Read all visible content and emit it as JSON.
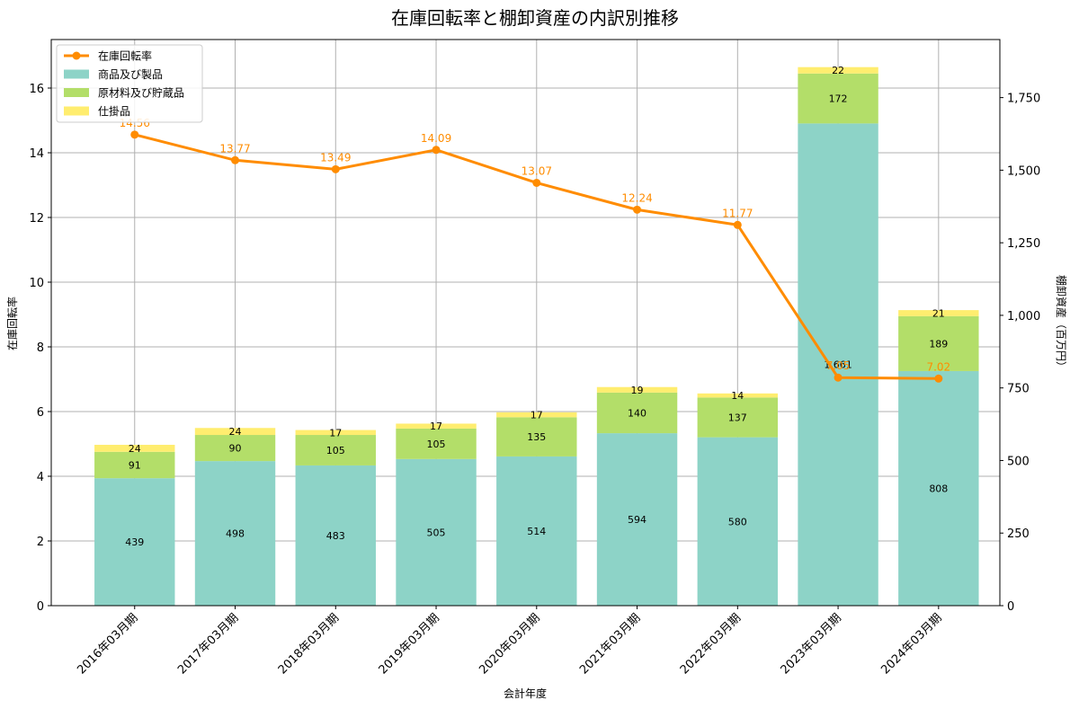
{
  "chart_data": {
    "type": "bar",
    "title": "在庫回転率と棚卸資産の内訳別推移",
    "xlabel": "会計年度",
    "ylabel_left": "在庫回転率",
    "ylabel_right": "棚卸資産（百万円）",
    "ylim_left": [
      0,
      17.5
    ],
    "ylim_right": [
      0,
      1950
    ],
    "left_ticks": [
      "0",
      "2",
      "4",
      "6",
      "8",
      "10",
      "12",
      "14",
      "16"
    ],
    "right_ticks": [
      "0",
      "250",
      "500",
      "750",
      "1,000",
      "1,250",
      "1,500",
      "1,750"
    ],
    "grid": true,
    "legend_position": "upper-left",
    "categories": [
      "2016年03月期",
      "2017年03月期",
      "2018年03月期",
      "2019年03月期",
      "2020年03月期",
      "2021年03月期",
      "2022年03月期",
      "2023年03月期",
      "2024年03月期"
    ],
    "series": [
      {
        "name": "商品及び製品",
        "kind": "bar",
        "axis": "right",
        "color": "#8dd3c7",
        "values": [
          439,
          498,
          483,
          505,
          514,
          594,
          580,
          1661,
          808
        ]
      },
      {
        "name": "原材料及び貯蔵品",
        "kind": "bar",
        "axis": "right",
        "color": "#b3de69",
        "values": [
          91,
          90,
          105,
          105,
          135,
          140,
          137,
          172,
          189
        ]
      },
      {
        "name": "仕掛品",
        "kind": "bar",
        "axis": "right",
        "color": "#ffed6f",
        "values": [
          24,
          24,
          17,
          17,
          17,
          19,
          14,
          22,
          21
        ]
      },
      {
        "name": "在庫回転率",
        "kind": "line",
        "axis": "left",
        "color": "#ff8c00",
        "values": [
          14.56,
          13.77,
          13.49,
          14.09,
          13.07,
          12.24,
          11.77,
          7.05,
          7.02
        ]
      }
    ],
    "bar_labels": [
      [
        "439",
        "498",
        "483",
        "505",
        "514",
        "594",
        "580",
        "1,661",
        "808"
      ],
      [
        "91",
        "90",
        "105",
        "105",
        "135",
        "140",
        "137",
        "172",
        "189"
      ],
      [
        "24",
        "24",
        "17",
        "17",
        "17",
        "19",
        "14",
        "22",
        "21"
      ]
    ],
    "line_labels": [
      "14.56",
      "13.77",
      "13.49",
      "14.09",
      "13.07",
      "12.24",
      "11.77",
      "7.05",
      "7.02"
    ]
  }
}
